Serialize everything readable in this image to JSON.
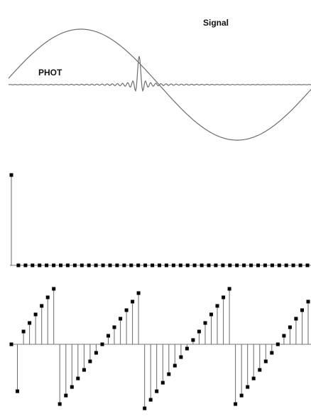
{
  "labels": {
    "phot": "PHOT",
    "signal": "Signal"
  },
  "colors": {
    "curve": "#6e6e6e",
    "stem": "#6a6a6a",
    "marker": "#000000",
    "background": "#ffffff"
  },
  "panels": {
    "impulse": {
      "samples": [
        1,
        0,
        0,
        0,
        0,
        0,
        0,
        0,
        0,
        0,
        0,
        0,
        0,
        0,
        0,
        0,
        0,
        0,
        0,
        0,
        0,
        0,
        0,
        0,
        0,
        0,
        0,
        0,
        0,
        0,
        0,
        0,
        0,
        0,
        0,
        0,
        0,
        0,
        0,
        0,
        0,
        0,
        0
      ]
    },
    "sawtooth": {
      "samples": [
        0,
        -1.1,
        0.3,
        0.5,
        0.7,
        0.9,
        1.1,
        1.3,
        -1.4,
        -1.2,
        -1.0,
        -0.8,
        -0.6,
        -0.4,
        -0.2,
        0.0,
        0.2,
        0.4,
        0.6,
        0.8,
        1.0,
        1.2,
        -1.5,
        -1.3,
        -1.1,
        -0.9,
        -0.7,
        -0.5,
        -0.3,
        -0.1,
        0.1,
        0.3,
        0.5,
        0.7,
        0.9,
        1.1,
        1.3,
        -1.4,
        -1.2,
        -1.0,
        -0.8,
        -0.6,
        -0.4,
        -0.2,
        0.0,
        0.2,
        0.4,
        0.6,
        0.8,
        1.0
      ]
    }
  }
}
